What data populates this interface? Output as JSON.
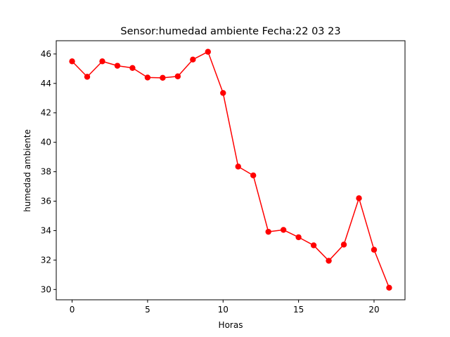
{
  "chart_data": {
    "type": "line",
    "title": "Sensor:humedad ambiente Fecha:22 03 23",
    "xlabel": "Horas",
    "ylabel": "humedad ambiente",
    "xlim": [
      -1.05,
      22.05
    ],
    "ylim": [
      29.3,
      46.9
    ],
    "xticks": [
      0,
      5,
      10,
      15,
      20
    ],
    "yticks": [
      30,
      32,
      34,
      36,
      38,
      40,
      42,
      44,
      46
    ],
    "grid": false,
    "legend": "none",
    "series": [
      {
        "x": [
          0,
          1,
          2,
          3,
          4,
          5,
          6,
          7,
          8,
          9,
          10,
          11,
          12,
          13,
          14,
          15,
          16,
          17,
          18,
          19,
          20,
          21
        ],
        "y": [
          45.5,
          44.45,
          45.5,
          45.2,
          45.05,
          44.4,
          44.38,
          44.48,
          45.62,
          46.15,
          43.35,
          38.35,
          37.75,
          33.92,
          34.05,
          33.55,
          33.0,
          31.95,
          33.05,
          36.2,
          32.7,
          30.12
        ],
        "color": "#ff0000",
        "marker": "circle"
      }
    ]
  }
}
